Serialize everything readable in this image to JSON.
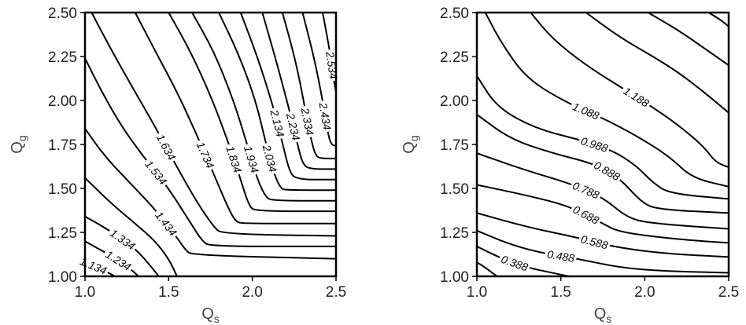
{
  "chart_data": [
    {
      "type": "contour",
      "title": "",
      "xlabel": "Q",
      "xlabel_sub": "s",
      "ylabel": "Q",
      "ylabel_sub": "g",
      "xlim": [
        1.0,
        2.5
      ],
      "ylim": [
        1.0,
        2.5
      ],
      "xticks": [
        "1.0",
        "1.5",
        "2.0",
        "2.5"
      ],
      "yticks": [
        "1.00",
        "1.25",
        "1.50",
        "1.75",
        "2.00",
        "2.25",
        "2.50"
      ],
      "grid": false,
      "contours": [
        {
          "level": "1.134",
          "points": [
            [
              1.0,
              1.08
            ],
            [
              1.1,
              1.04
            ],
            [
              1.18,
              1.0
            ]
          ]
        },
        {
          "level": "1.234",
          "points": [
            [
              1.0,
              1.2
            ],
            [
              1.15,
              1.12
            ],
            [
              1.25,
              1.06
            ],
            [
              1.32,
              1.0
            ]
          ]
        },
        {
          "level": "1.334",
          "points": [
            [
              1.0,
              1.34
            ],
            [
              1.15,
              1.26
            ],
            [
              1.3,
              1.16
            ],
            [
              1.4,
              1.05
            ],
            [
              1.44,
              1.0
            ]
          ]
        },
        {
          "level": "",
          "points": [
            [
              1.0,
              1.56
            ],
            [
              1.15,
              1.42
            ],
            [
              1.3,
              1.3
            ],
            [
              1.42,
              1.2
            ],
            [
              1.5,
              1.1
            ],
            [
              1.55,
              1.0
            ]
          ]
        },
        {
          "level": "1.434",
          "points": [
            [
              1.0,
              1.84
            ],
            [
              1.12,
              1.68
            ],
            [
              1.28,
              1.52
            ],
            [
              1.42,
              1.38
            ],
            [
              1.55,
              1.22
            ],
            [
              1.6,
              1.15
            ],
            [
              1.64,
              1.12
            ],
            [
              2.5,
              1.1
            ]
          ]
        },
        {
          "level": "1.534",
          "points": [
            [
              1.0,
              2.24
            ],
            [
              1.1,
              2.05
            ],
            [
              1.22,
              1.85
            ],
            [
              1.35,
              1.68
            ],
            [
              1.5,
              1.5
            ],
            [
              1.62,
              1.32
            ],
            [
              1.7,
              1.2
            ],
            [
              1.75,
              1.17
            ],
            [
              2.5,
              1.17
            ]
          ]
        },
        {
          "level": "1.634",
          "points": [
            [
              1.04,
              2.5
            ],
            [
              1.15,
              2.3
            ],
            [
              1.28,
              2.08
            ],
            [
              1.42,
              1.85
            ],
            [
              1.55,
              1.62
            ],
            [
              1.67,
              1.42
            ],
            [
              1.77,
              1.28
            ],
            [
              1.82,
              1.24
            ],
            [
              2.5,
              1.23
            ]
          ]
        },
        {
          "level": "1.734",
          "points": [
            [
              1.3,
              2.5
            ],
            [
              1.42,
              2.28
            ],
            [
              1.55,
              2.05
            ],
            [
              1.67,
              1.8
            ],
            [
              1.77,
              1.58
            ],
            [
              1.85,
              1.4
            ],
            [
              1.9,
              1.31
            ],
            [
              1.95,
              1.3
            ],
            [
              2.5,
              1.3
            ]
          ]
        },
        {
          "level": "1.834",
          "points": [
            [
              1.5,
              2.5
            ],
            [
              1.63,
              2.28
            ],
            [
              1.75,
              2.03
            ],
            [
              1.85,
              1.78
            ],
            [
              1.93,
              1.55
            ],
            [
              1.98,
              1.4
            ],
            [
              2.02,
              1.37
            ],
            [
              2.5,
              1.37
            ]
          ]
        },
        {
          "level": "1.934",
          "points": [
            [
              1.64,
              2.5
            ],
            [
              1.77,
              2.28
            ],
            [
              1.88,
              2.02
            ],
            [
              1.96,
              1.78
            ],
            [
              2.03,
              1.55
            ],
            [
              2.08,
              1.45
            ],
            [
              2.12,
              1.43
            ],
            [
              2.5,
              1.43
            ]
          ]
        },
        {
          "level": "2.034",
          "points": [
            [
              1.8,
              2.5
            ],
            [
              1.92,
              2.26
            ],
            [
              2.02,
              2.0
            ],
            [
              2.08,
              1.76
            ],
            [
              2.13,
              1.58
            ],
            [
              2.17,
              1.5
            ],
            [
              2.2,
              1.49
            ],
            [
              2.5,
              1.49
            ]
          ]
        },
        {
          "level": "2.134",
          "points": [
            [
              1.93,
              2.5
            ],
            [
              2.03,
              2.25
            ],
            [
              2.12,
              1.98
            ],
            [
              2.18,
              1.76
            ],
            [
              2.22,
              1.6
            ],
            [
              2.26,
              1.55
            ],
            [
              2.5,
              1.55
            ]
          ]
        },
        {
          "level": "2.234",
          "points": [
            [
              2.06,
              2.5
            ],
            [
              2.15,
              2.2
            ],
            [
              2.22,
              1.95
            ],
            [
              2.27,
              1.75
            ],
            [
              2.3,
              1.64
            ],
            [
              2.34,
              1.61
            ],
            [
              2.5,
              1.61
            ]
          ]
        },
        {
          "level": "2.334",
          "points": [
            [
              2.18,
              2.5
            ],
            [
              2.26,
              2.22
            ],
            [
              2.31,
              1.98
            ],
            [
              2.35,
              1.78
            ],
            [
              2.38,
              1.68
            ],
            [
              2.42,
              1.67
            ],
            [
              2.5,
              1.67
            ]
          ]
        },
        {
          "level": "2.434",
          "points": [
            [
              2.3,
              2.5
            ],
            [
              2.37,
              2.24
            ],
            [
              2.42,
              2.0
            ],
            [
              2.45,
              1.82
            ],
            [
              2.47,
              1.75
            ],
            [
              2.5,
              1.74
            ]
          ]
        },
        {
          "level": "2.534",
          "points": [
            [
              2.42,
              2.5
            ],
            [
              2.46,
              2.3
            ],
            [
              2.49,
              2.1
            ],
            [
              2.5,
              2.05
            ]
          ]
        }
      ]
    },
    {
      "type": "contour",
      "title": "",
      "xlabel": "Q",
      "xlabel_sub": "s",
      "ylabel": "Q",
      "ylabel_sub": "g",
      "xlim": [
        1.0,
        2.5
      ],
      "ylim": [
        1.0,
        2.5
      ],
      "xticks": [
        "1.0",
        "1.5",
        "2.0",
        "2.5"
      ],
      "yticks": [
        "1.00",
        "1.25",
        "1.50",
        "1.75",
        "2.00",
        "2.25",
        "2.50"
      ],
      "grid": false,
      "contours": [
        {
          "level": "",
          "points": [
            [
              1.0,
              1.08
            ],
            [
              1.05,
              1.05
            ],
            [
              1.12,
              1.0
            ]
          ]
        },
        {
          "level": "0.388",
          "points": [
            [
              1.0,
              1.17
            ],
            [
              1.15,
              1.1
            ],
            [
              1.3,
              1.05
            ],
            [
              1.45,
              1.02
            ],
            [
              1.55,
              1.0
            ]
          ]
        },
        {
          "level": "0.488",
          "points": [
            [
              1.0,
              1.26
            ],
            [
              1.2,
              1.18
            ],
            [
              1.4,
              1.13
            ],
            [
              1.6,
              1.1
            ],
            [
              1.85,
              1.05
            ],
            [
              2.1,
              1.03
            ],
            [
              2.5,
              1.02
            ]
          ]
        },
        {
          "level": "0.588",
          "points": [
            [
              1.0,
              1.36
            ],
            [
              1.3,
              1.28
            ],
            [
              1.6,
              1.22
            ],
            [
              1.8,
              1.17
            ],
            [
              2.1,
              1.13
            ],
            [
              2.5,
              1.11
            ]
          ]
        },
        {
          "level": "0.688",
          "points": [
            [
              1.0,
              1.52
            ],
            [
              1.3,
              1.46
            ],
            [
              1.55,
              1.4
            ],
            [
              1.75,
              1.3
            ],
            [
              1.85,
              1.25
            ],
            [
              2.2,
              1.21
            ],
            [
              2.5,
              1.19
            ]
          ]
        },
        {
          "level": "0.788",
          "points": [
            [
              1.0,
              1.7
            ],
            [
              1.3,
              1.6
            ],
            [
              1.55,
              1.53
            ],
            [
              1.75,
              1.45
            ],
            [
              1.9,
              1.33
            ],
            [
              2.05,
              1.3
            ],
            [
              2.5,
              1.27
            ]
          ]
        },
        {
          "level": "0.888",
          "points": [
            [
              1.0,
              1.92
            ],
            [
              1.2,
              1.78
            ],
            [
              1.45,
              1.7
            ],
            [
              1.7,
              1.64
            ],
            [
              1.85,
              1.56
            ],
            [
              1.98,
              1.42
            ],
            [
              2.08,
              1.38
            ],
            [
              2.5,
              1.36
            ]
          ]
        },
        {
          "level": "0.988",
          "points": [
            [
              1.0,
              2.14
            ],
            [
              1.12,
              1.96
            ],
            [
              1.35,
              1.84
            ],
            [
              1.6,
              1.78
            ],
            [
              1.8,
              1.72
            ],
            [
              1.95,
              1.63
            ],
            [
              2.05,
              1.53
            ],
            [
              2.15,
              1.47
            ],
            [
              2.5,
              1.44
            ]
          ]
        },
        {
          "level": "1.088",
          "points": [
            [
              1.05,
              2.5
            ],
            [
              1.15,
              2.32
            ],
            [
              1.3,
              2.12
            ],
            [
              1.55,
              1.98
            ],
            [
              1.75,
              1.9
            ],
            [
              1.95,
              1.8
            ],
            [
              2.15,
              1.68
            ],
            [
              2.28,
              1.56
            ],
            [
              2.5,
              1.51
            ]
          ]
        },
        {
          "level": "1.188",
          "points": [
            [
              1.32,
              2.5
            ],
            [
              1.45,
              2.35
            ],
            [
              1.65,
              2.2
            ],
            [
              1.85,
              2.08
            ],
            [
              2.05,
              1.96
            ],
            [
              2.2,
              1.86
            ],
            [
              2.35,
              1.74
            ],
            [
              2.42,
              1.65
            ],
            [
              2.5,
              1.62
            ]
          ]
        },
        {
          "level": "",
          "points": [
            [
              1.65,
              2.5
            ],
            [
              1.85,
              2.36
            ],
            [
              2.05,
              2.25
            ],
            [
              2.2,
              2.16
            ],
            [
              2.35,
              2.05
            ],
            [
              2.5,
              1.93
            ]
          ]
        },
        {
          "level": "",
          "points": [
            [
              2.02,
              2.5
            ],
            [
              2.2,
              2.4
            ],
            [
              2.35,
              2.3
            ],
            [
              2.5,
              2.2
            ]
          ]
        },
        {
          "level": "",
          "points": [
            [
              2.38,
              2.5
            ],
            [
              2.45,
              2.46
            ],
            [
              2.5,
              2.42
            ]
          ]
        }
      ]
    }
  ]
}
